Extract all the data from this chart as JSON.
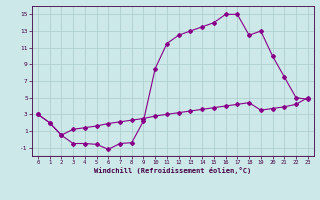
{
  "xlabel": "Windchill (Refroidissement éolien,°C)",
  "line1_x": [
    0,
    1,
    2,
    3,
    4,
    5,
    6,
    7,
    8,
    9,
    10,
    11,
    12,
    13,
    14,
    15,
    16,
    17,
    18,
    19,
    20,
    21,
    22,
    23
  ],
  "line1_y": [
    3,
    2,
    0.5,
    -0.5,
    -0.5,
    -0.6,
    -1.2,
    -0.5,
    -0.4,
    2.2,
    8.5,
    11.5,
    12.5,
    13,
    13.5,
    14,
    15,
    15,
    12.5,
    13,
    10,
    7.5,
    5,
    4.8
  ],
  "line2_x": [
    0,
    1,
    2,
    3,
    4,
    5,
    6,
    7,
    8,
    9,
    10,
    11,
    12,
    13,
    14,
    15,
    16,
    17,
    18,
    19,
    20,
    21,
    22,
    23
  ],
  "line2_y": [
    3,
    2,
    0.5,
    1.2,
    1.4,
    1.6,
    1.9,
    2.1,
    2.3,
    2.5,
    2.8,
    3.0,
    3.2,
    3.4,
    3.6,
    3.8,
    4.0,
    4.2,
    4.4,
    3.5,
    3.7,
    3.9,
    4.2,
    5.0
  ],
  "line_color": "#880088",
  "bg_color": "#cce8e8",
  "grid_color": "#aacccc",
  "xlim": [
    -0.5,
    23.5
  ],
  "ylim": [
    -2,
    16
  ],
  "yticks": [
    -1,
    1,
    3,
    5,
    7,
    9,
    11,
    13,
    15
  ],
  "xticks": [
    0,
    1,
    2,
    3,
    4,
    5,
    6,
    7,
    8,
    9,
    10,
    11,
    12,
    13,
    14,
    15,
    16,
    17,
    18,
    19,
    20,
    21,
    22,
    23
  ]
}
